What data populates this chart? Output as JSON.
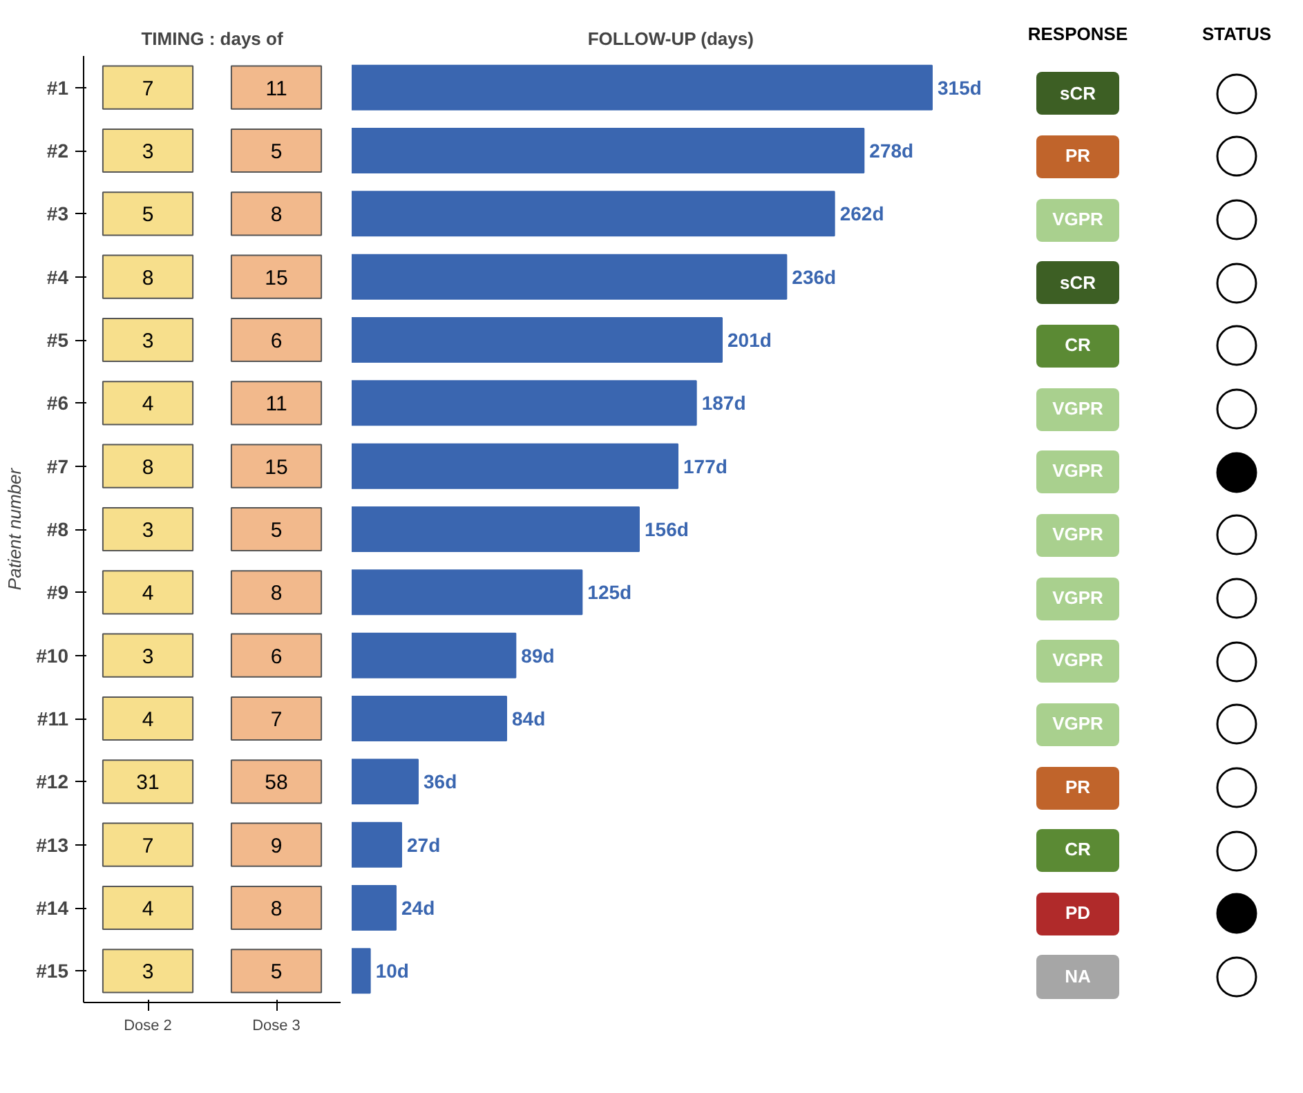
{
  "chart_data": [
    {
      "type": "heatmap",
      "title": "TIMING : days of",
      "ylabel": "Patient number",
      "categories": [
        "Dose 2",
        "Dose 3"
      ],
      "y_categories": [
        "#1",
        "#2",
        "#3",
        "#4",
        "#5",
        "#6",
        "#7",
        "#8",
        "#9",
        "#10",
        "#11",
        "#12",
        "#13",
        "#14",
        "#15"
      ],
      "cells": [
        [
          7,
          11
        ],
        [
          3,
          5
        ],
        [
          5,
          8
        ],
        [
          8,
          15
        ],
        [
          3,
          6
        ],
        [
          4,
          11
        ],
        [
          8,
          15
        ],
        [
          3,
          5
        ],
        [
          4,
          8
        ],
        [
          3,
          6
        ],
        [
          4,
          7
        ],
        [
          31,
          58
        ],
        [
          7,
          9
        ],
        [
          4,
          8
        ],
        [
          3,
          5
        ]
      ],
      "colors": [
        "#f7df8c",
        "#f2b98c"
      ],
      "data_labels": true
    },
    {
      "type": "bar",
      "orientation": "horizontal",
      "title": "FOLLOW-UP (days)",
      "values": [
        315,
        278,
        262,
        236,
        201,
        187,
        177,
        156,
        125,
        89,
        84,
        36,
        27,
        24,
        10
      ],
      "value_labels": [
        "315d",
        "278d",
        "262d",
        "236d",
        "201d",
        "187d",
        "177d",
        "156d",
        "125d",
        "89d",
        "84d",
        "36d",
        "27d",
        "24d",
        "10d"
      ],
      "color": "#3a66b0",
      "tick_labels": false
    },
    {
      "type": "other",
      "title": "RESPONSE",
      "annotations": [
        "sCR",
        "PR",
        "VGPR",
        "sCR",
        "CR",
        "VGPR",
        "VGPR",
        "VGPR",
        "VGPR",
        "VGPR",
        "VGPR",
        "PR",
        "CR",
        "PD",
        "NA"
      ],
      "colors": [
        "#3d5f24",
        "#c0642b",
        "#a9d08e",
        "#3d5f24",
        "#5b8a34",
        "#a9d08e",
        "#a9d08e",
        "#a9d08e",
        "#a9d08e",
        "#a9d08e",
        "#a9d08e",
        "#c0642b",
        "#5b8a34",
        "#b02a2a",
        "#a6a6a6"
      ]
    },
    {
      "type": "other",
      "title": "STATUS",
      "colors": [
        "#ffffff",
        "#ffffff",
        "#ffffff",
        "#ffffff",
        "#ffffff",
        "#ffffff",
        "#000000",
        "#ffffff",
        "#ffffff",
        "#ffffff",
        "#ffffff",
        "#ffffff",
        "#ffffff",
        "#000000",
        "#ffffff"
      ]
    }
  ]
}
